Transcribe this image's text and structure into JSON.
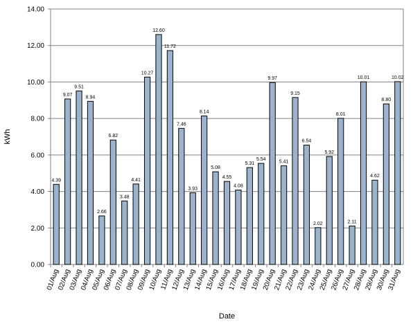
{
  "chart_data": {
    "type": "bar",
    "xlabel": "Date",
    "ylabel": "kWh",
    "ylim": [
      0,
      14
    ],
    "ytick_step": 2,
    "grid": true,
    "bar_color": "#9bb3cc",
    "categories": [
      "01/Aug",
      "02/Aug",
      "03/Aug",
      "04/Aug",
      "05/Aug",
      "06/Aug",
      "07/Aug",
      "08/Aug",
      "09/Aug",
      "10/Aug",
      "11/Aug",
      "12/Aug",
      "13/Aug",
      "14/Aug",
      "15/Aug",
      "16/Aug",
      "17/Aug",
      "18/Aug",
      "19/Aug",
      "20/Aug",
      "21/Aug",
      "22/Aug",
      "23/Aug",
      "24/Aug",
      "25/Aug",
      "26/Aug",
      "27/Aug",
      "28/Aug",
      "29/Aug",
      "30/Aug",
      "31/Aug"
    ],
    "values": [
      4.39,
      9.07,
      9.51,
      8.94,
      2.66,
      6.82,
      3.48,
      4.41,
      10.27,
      12.6,
      11.72,
      7.46,
      3.93,
      8.14,
      5.08,
      4.55,
      4.08,
      5.31,
      5.54,
      9.97,
      5.41,
      9.15,
      6.54,
      2.02,
      5.92,
      8.01,
      2.11,
      10.01,
      4.62,
      8.8,
      10.02
    ],
    "value_labels": [
      "4.39",
      "9.07",
      "9.51",
      "8.94",
      "2.66",
      "6.82",
      "3.48",
      "4.41",
      "10.27",
      "12.60",
      "11.72",
      "7.46",
      "3.93",
      "8.14",
      "5.08",
      "4.55",
      "4.08",
      "5.31",
      "5.54",
      "9.97",
      "5.41",
      "9.15",
      "6.54",
      "2.02",
      "5.92",
      "8.01",
      "2.11",
      "10.01",
      "4.62",
      "8.80",
      "10.02"
    ],
    "ytick_labels": [
      "0.00",
      "2.00",
      "4.00",
      "6.00",
      "8.00",
      "10.00",
      "12.00",
      "14.00"
    ]
  }
}
